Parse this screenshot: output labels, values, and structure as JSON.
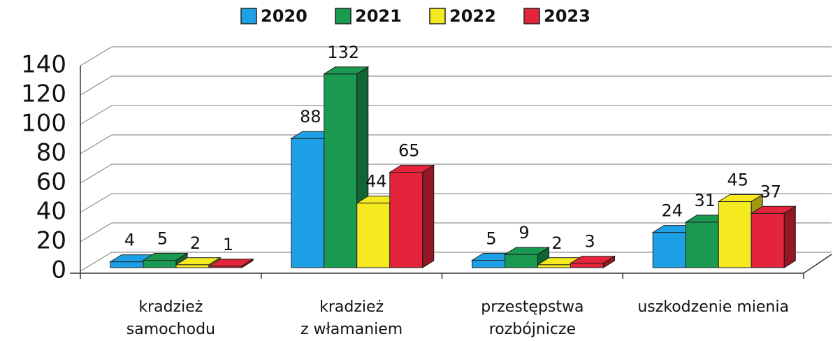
{
  "chart_data": {
    "type": "bar3d",
    "categories": [
      [
        "kradzież",
        "samochodu"
      ],
      [
        "kradzież",
        "z włamaniem"
      ],
      [
        "przestępstwa",
        "rozbójnicze"
      ],
      [
        "uszkodzenie mienia"
      ]
    ],
    "series": [
      {
        "name": "2020",
        "color": "#1ea0e6",
        "values": [
          4,
          88,
          5,
          24
        ]
      },
      {
        "name": "2021",
        "color": "#1a9a50",
        "values": [
          5,
          132,
          9,
          31
        ]
      },
      {
        "name": "2022",
        "color": "#f5ea20",
        "values": [
          2,
          44,
          2,
          45
        ]
      },
      {
        "name": "2023",
        "color": "#e3243a",
        "values": [
          1,
          65,
          3,
          37
        ]
      }
    ],
    "ylim": [
      0,
      140
    ],
    "yticks": [
      0,
      20,
      40,
      60,
      80,
      100,
      120,
      140
    ],
    "grid": true,
    "legend": "top"
  }
}
